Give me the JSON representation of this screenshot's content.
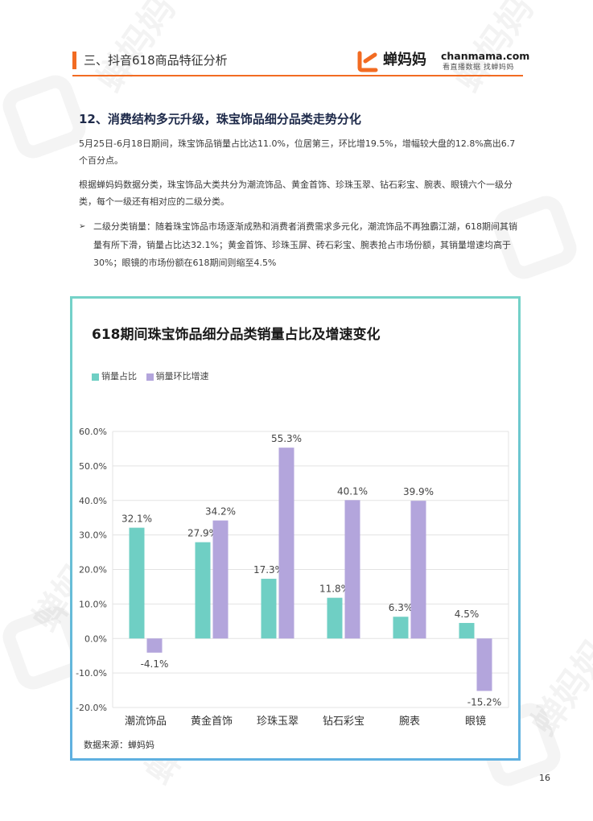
{
  "header": {
    "section_title": "三、抖音618商品特征分析",
    "brand_cn": "蝉妈妈",
    "brand_en": "chanmama.com",
    "brand_slogan": "看直播数据 找蝉妈妈",
    "accent_color": "#f26b22"
  },
  "article": {
    "title": "12、消费结构多元升级，珠宝饰品细分品类走势分化",
    "para1": "5月25日-6月18日期间，珠宝饰品销量占比达11.0%，位居第三，环比增19.5%，增幅较大盘的12.8%高出6.7个百分点。",
    "para2": "根据蝉妈妈数据分类，珠宝饰品大类共分为潮流饰品、黄金首饰、珍珠玉翠、钻石彩宝、腕表、眼镜六个一级分类，每个一级还有相对应的二级分类。",
    "bullet_mark": "➢",
    "bullet": "二级分类销量：随着珠宝饰品市场逐渐成熟和消费者消费需求多元化，潮流饰品不再独霸江湖，618期间其销量有所下滑，销量占比达32.1%；黄金首饰、珍珠玉屏、砖石彩宝、腕表抢占市场份额，其销量增速均高于30%；眼镜的市场份额在618期间则缩至4.5%"
  },
  "chart_source": "数据来源：蝉妈妈",
  "page_number": "16",
  "watermark": "蝉妈妈",
  "chart_data": {
    "type": "bar",
    "title": "618期间珠宝饰品细分品类销量占比及增速变化",
    "categories": [
      "潮流饰品",
      "黄金首饰",
      "珍珠玉翠",
      "钻石彩宝",
      "腕表",
      "眼镜"
    ],
    "series": [
      {
        "name": "销量占比",
        "color": "#6fcfc4",
        "values": [
          32.1,
          27.9,
          17.3,
          11.8,
          6.3,
          4.5
        ],
        "labels": [
          "32.1%",
          "27.9%",
          "17.3%",
          "11.8%",
          "6.3%",
          "4.5%"
        ]
      },
      {
        "name": "销量环比增速",
        "color": "#b3a5dc",
        "values": [
          -4.1,
          34.2,
          55.3,
          40.1,
          39.9,
          -15.2
        ],
        "labels": [
          "-4.1%",
          "34.2%",
          "55.3%",
          "40.1%",
          "39.9%",
          "-15.2%"
        ]
      }
    ],
    "yticks": [
      "60.0%",
      "50.0%",
      "40.0%",
      "30.0%",
      "20.0%",
      "10.0%",
      "0.0%",
      "-10.0%",
      "-20.0%"
    ],
    "ylim": [
      -20,
      60
    ],
    "grid": true,
    "legend_position": "top-left"
  }
}
